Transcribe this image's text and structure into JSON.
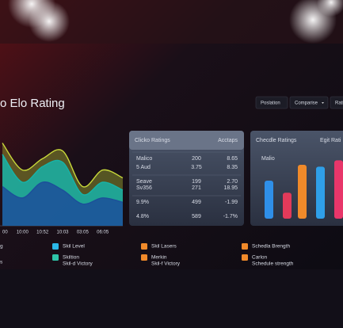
{
  "header": {
    "title": "o Elo Rating",
    "buttons": [
      "Poslation",
      "Comparise",
      "Rati"
    ]
  },
  "chart_data": [
    {
      "type": "area",
      "categories": [
        "00",
        "10:00",
        "10:52",
        "10:03",
        "03:05",
        "06:05",
        null
      ],
      "ylim": [
        0,
        100
      ],
      "series": [
        {
          "color": "#c9d93a",
          "values": [
            95,
            64,
            77,
            86,
            45,
            64,
            55
          ]
        },
        {
          "color": "#17b3a8",
          "values": [
            82,
            50,
            68,
            73,
            36,
            50,
            41
          ]
        },
        {
          "color": "#1c4f9a",
          "values": [
            45,
            32,
            50,
            41,
            25,
            32,
            27
          ]
        }
      ]
    },
    {
      "type": "bar",
      "title": "Checdle Ratings",
      "subtitle": "Egit Rati",
      "annotation": "Malio",
      "ylim": [
        0,
        100
      ],
      "values": [
        60,
        41,
        85,
        82,
        92
      ],
      "colors": [
        "#2f8fe8",
        "#e23a5a",
        "#f08a2a",
        "#2f9fe8",
        "#e8366a"
      ]
    }
  ],
  "table": {
    "header": [
      "Clicko Ratings",
      "Acctaps"
    ],
    "rows": [
      [
        "Malico",
        "200",
        "8.65"
      ],
      [
        "5 Aud",
        "3.75",
        "8.35"
      ],
      [
        "Seave",
        "199",
        "2.70"
      ],
      [
        "Sv356",
        "271",
        "18.95"
      ],
      [
        "9.9%",
        "499",
        "-1.99"
      ],
      [
        "4.8%",
        "589",
        "-1.7%"
      ]
    ]
  },
  "legend": [
    {
      "color": null,
      "lines": [
        "g"
      ]
    },
    {
      "color": null,
      "lines": [
        "s"
      ]
    },
    {
      "color": "#2bb8e8",
      "lines": [
        "Skil Level"
      ]
    },
    {
      "color": "#2ec4a8",
      "lines": [
        "Skiltion",
        "Skil-d Victory"
      ]
    },
    {
      "color": "#f08a2a",
      "lines": [
        "Skil Lasers"
      ]
    },
    {
      "color": "#f08a2a",
      "lines": [
        "Merkin",
        "Skil-f Victory"
      ]
    },
    {
      "color": "#f08a2a",
      "lines": [
        "Schedla Brength"
      ]
    },
    {
      "color": "#f08a2a",
      "lines": [
        "Carlon",
        "Schedule strength"
      ]
    }
  ]
}
